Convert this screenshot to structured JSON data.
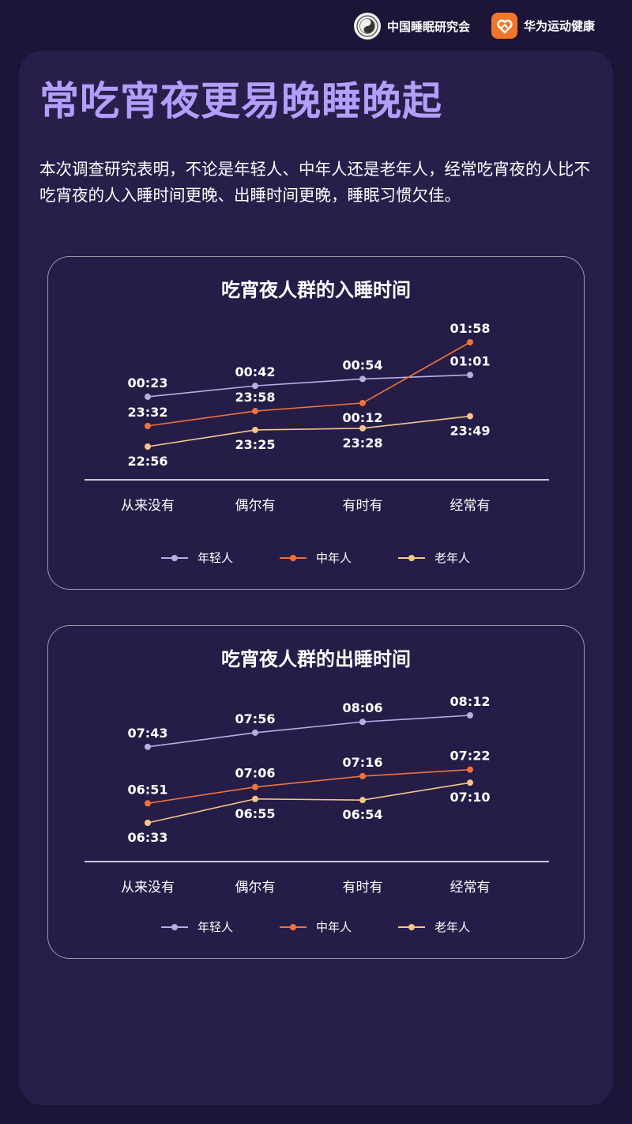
{
  "header": {
    "org_logo_label": "中国睡眠研究会",
    "app_logo_label": "华为运动健康"
  },
  "page": {
    "headline": "常吃宵夜更易晚睡晚起",
    "intro": "本次调查研究表明，不论是年轻人、中年人还是老年人，经常吃宵夜的人比不吃宵夜的人入睡时间更晚、出睡时间更晚，睡眠习惯欠佳。"
  },
  "colors": {
    "page_background": "#1c1538",
    "panel_background": "#271f4a",
    "headline": "#b49dfb",
    "young": "#b7aee6",
    "middle": "#f0733a",
    "elderly": "#f7c58b"
  },
  "chart_data": [
    {
      "type": "line",
      "title": "吃宵夜人群的入睡时间",
      "categories": [
        "从来没有",
        "偶尔有",
        "有时有",
        "经常有"
      ],
      "xlabel": "",
      "ylabel": "",
      "grid": false,
      "legend_placement": "bottom",
      "series": [
        {
          "name": "年轻人",
          "color": "#b7aee6",
          "values": [
            "00:23",
            "00:42",
            "00:54",
            "01:01"
          ]
        },
        {
          "name": "中年人",
          "color": "#f0733a",
          "values": [
            "23:32",
            "23:58",
            "00:12",
            "01:58"
          ]
        },
        {
          "name": "老年人",
          "color": "#f7c58b",
          "values": [
            "22:56",
            "23:25",
            "23:28",
            "23:49"
          ]
        }
      ]
    },
    {
      "type": "line",
      "title": "吃宵夜人群的出睡时间",
      "categories": [
        "从来没有",
        "偶尔有",
        "有时有",
        "经常有"
      ],
      "xlabel": "",
      "ylabel": "",
      "grid": false,
      "legend_placement": "bottom",
      "series": [
        {
          "name": "年轻人",
          "color": "#b7aee6",
          "values": [
            "07:43",
            "07:56",
            "08:06",
            "08:12"
          ]
        },
        {
          "name": "中年人",
          "color": "#f0733a",
          "values": [
            "06:51",
            "07:06",
            "07:16",
            "07:22"
          ]
        },
        {
          "name": "老年人",
          "color": "#f7c58b",
          "values": [
            "06:33",
            "06:55",
            "06:54",
            "07:10"
          ]
        }
      ]
    }
  ]
}
